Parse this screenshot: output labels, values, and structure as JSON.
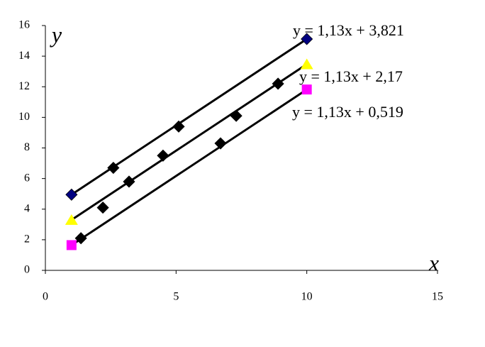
{
  "chart_data": {
    "type": "scatter",
    "x_label": "x",
    "y_label": "y",
    "xlim": [
      0,
      15
    ],
    "xticks": [
      0,
      5,
      10,
      15
    ],
    "ylim": [
      0,
      16
    ],
    "yticks": [
      0,
      2,
      4,
      6,
      8,
      10,
      12,
      14,
      16
    ],
    "grid": false,
    "series": [
      {
        "color": "#000000",
        "marker": "diamond",
        "x": [
          1.36,
          2.2,
          2.6,
          3.2,
          4.5,
          5.1,
          6.7,
          7.3,
          8.9
        ],
        "values": [
          2.1,
          4.1,
          6.7,
          5.8,
          7.5,
          9.4,
          8.3,
          10.1,
          12.2
        ]
      },
      {
        "color": "#000080",
        "marker": "diamond",
        "x": [
          1,
          10
        ],
        "values": [
          4.95,
          15.12
        ]
      },
      {
        "color": "#ffff00",
        "marker": "triangle",
        "x": [
          1,
          10
        ],
        "values": [
          3.3,
          13.47
        ]
      },
      {
        "color": "#ff00ff",
        "marker": "square",
        "x": [
          1,
          10
        ],
        "values": [
          1.65,
          11.82
        ]
      }
    ],
    "trendlines": [
      {
        "label": "y = 1,13x + 3,821",
        "color": "#000000",
        "x": [
          1,
          10
        ],
        "values": [
          4.951,
          15.121
        ]
      },
      {
        "label": "y = 1,13x + 2,17",
        "color": "#000000",
        "x": [
          1,
          10
        ],
        "values": [
          3.3,
          13.47
        ]
      },
      {
        "label": "y = 1,13x + 0,519",
        "color": "#000000",
        "x": [
          1,
          10
        ],
        "values": [
          1.649,
          11.819
        ]
      }
    ]
  }
}
